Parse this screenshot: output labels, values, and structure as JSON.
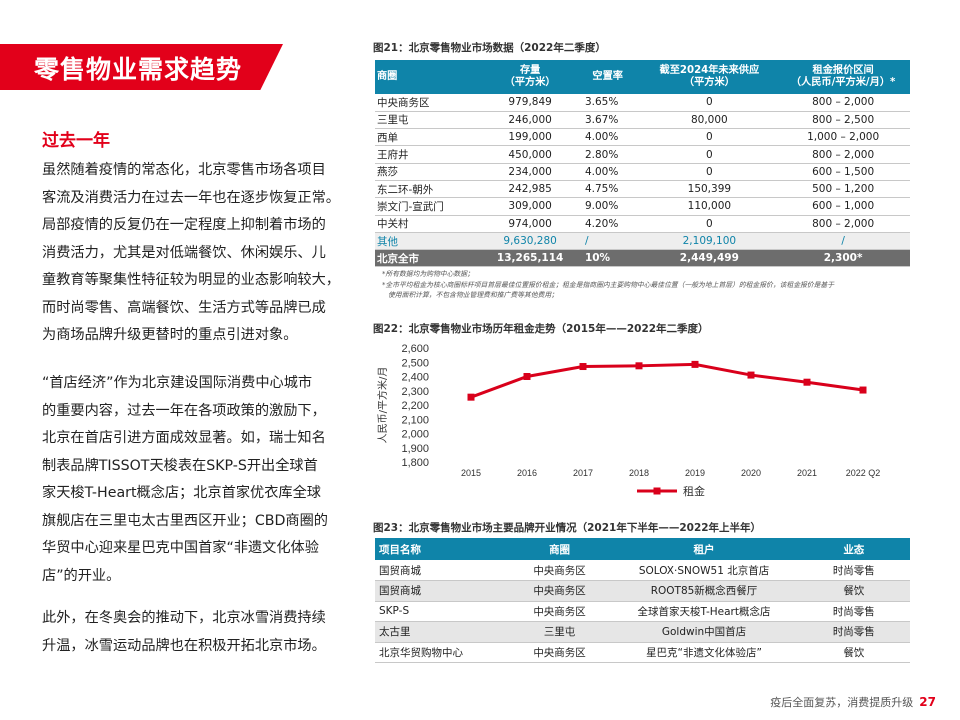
{
  "banner": {
    "title": "零售物业需求趋势"
  },
  "section": {
    "title": "过去一年"
  },
  "paragraphs": {
    "p1": [
      "虽然随着疫情的常态化，北京零售市场各项目",
      "客流及消费活力在过去一年也在逐步恢复正常。",
      "局部疫情的反复仍在一定程度上抑制着市场的",
      "消费活力，尤其是对低端餐饮、休闲娱乐、儿",
      "童教育等聚集性特征较为明显的业态影响较大，",
      "而时尚零售、高端餐饮、生活方式等品牌已成",
      "为商场品牌升级更替时的重点引进对象。"
    ],
    "p2": [
      "“首店经济”作为北京建设国际消费中心城市",
      "的重要内容，过去一年在各项政策的激励下，",
      "北京在首店引进方面成效显著。如，瑞士知名",
      "制表品牌TISSOT天梭表在SKP-S开出全球首",
      "家天梭T-Heart概念店；北京首家优衣库全球",
      "旗舰店在三里屯太古里西区开业；CBD商圈的",
      "华贸中心迎来星巴克中国首家“非遗文化体验",
      "店”的开业。"
    ],
    "p3": [
      "此外，在冬奥会的推动下，北京冰雪消费持续",
      "升温，冰雪运动品牌也在积极开拓北京市场。"
    ]
  },
  "fig21": {
    "title": "图21：北京零售物业市场数据（2022年二季度）",
    "headers": [
      [
        "商圈"
      ],
      [
        "存量",
        "（平方米）"
      ],
      [
        "空置率"
      ],
      [
        "截至2024年未来供应",
        "（平方米）"
      ],
      [
        "租金报价区间",
        "（人民币/平方米/月）*"
      ]
    ],
    "rows": [
      [
        "中央商务区",
        "979,849",
        "3.65%",
        "0",
        "800 – 2,000"
      ],
      [
        "三里屯",
        "246,000",
        "3.67%",
        "80,000",
        "800 – 2,500"
      ],
      [
        "西单",
        "199,000",
        "4.00%",
        "0",
        "1,000 – 2,000"
      ],
      [
        "王府井",
        "450,000",
        "2.80%",
        "0",
        "800 – 2,000"
      ],
      [
        "燕莎",
        "234,000",
        "4.00%",
        "0",
        "600 – 1,500"
      ],
      [
        "东二环-朝外",
        "242,985",
        "4.75%",
        "150,399",
        "500 – 1,200"
      ],
      [
        "崇文门-宣武门",
        "309,000",
        "9.00%",
        "110,000",
        "600 – 1,000"
      ],
      [
        "中关村",
        "974,000",
        "4.20%",
        "0",
        "800 – 2,000"
      ]
    ],
    "other": [
      "其他",
      "9,630,280",
      "/",
      "2,109,100",
      "/"
    ],
    "total": [
      "北京全市",
      "13,265,114",
      "10%",
      "2,449,499",
      "2,300*"
    ],
    "notes": [
      "*所有数据均为购物中心数据；",
      "*全市平均租金为核心商圈标杆项目首层最佳位置报价租金；租金是指商圈内主要购物中心最佳位置（一般为地上首层）的租金报价，该租金报价是基于",
      "使用面积计算，不包含物业管理费和推广费等其他费用；"
    ]
  },
  "fig22": {
    "title": "图22：北京零售物业市场历年租金走势（2015年——2022年二季度）",
    "chart_data": {
      "type": "line",
      "x": [
        "2015",
        "2016",
        "2017",
        "2018",
        "2019",
        "2020",
        "2021",
        "2022 Q2"
      ],
      "series": [
        {
          "name": "租金",
          "values": [
            2255,
            2400,
            2470,
            2475,
            2485,
            2410,
            2360,
            2305
          ]
        }
      ],
      "ylabel": "人民币/平方米/月",
      "ylim": [
        1800,
        2600
      ],
      "yticks": [
        "1,800",
        "1,900",
        "2,000",
        "2,100",
        "2,200",
        "2,300",
        "2,400",
        "2,500",
        "2,600"
      ],
      "ytick_values": [
        1800,
        1900,
        2000,
        2100,
        2200,
        2300,
        2400,
        2500,
        2600
      ],
      "grid": false,
      "legend": "bottom",
      "color": "#d9001b"
    }
  },
  "fig23": {
    "title": "图23：北京零售物业市场主要品牌开业情况（2021年下半年——2022年上半年）",
    "headers": [
      "项目名称",
      "商圈",
      "租户",
      "业态"
    ],
    "rows": [
      [
        "国贸商城",
        "中央商务区",
        "SOLOX·SNOW51 北京首店",
        "时尚零售"
      ],
      [
        "国贸商城",
        "中央商务区",
        "ROOT85新概念西餐厅",
        "餐饮"
      ],
      [
        "SKP-S",
        "中央商务区",
        "全球首家天梭T-Heart概念店",
        "时尚零售"
      ],
      [
        "太古里",
        "三里屯",
        "Goldwin中国首店",
        "时尚零售"
      ],
      [
        "北京华贸购物中心",
        "中央商务区",
        "星巴克“非遗文化体验店”",
        "餐饮"
      ]
    ]
  },
  "footer": {
    "text": "疫后全面复苏，消费提质升级",
    "page": "27"
  },
  "colors": {
    "accent": "#e2001a",
    "table_header": "#0f84a9",
    "total_row": "#6d6d6d"
  }
}
